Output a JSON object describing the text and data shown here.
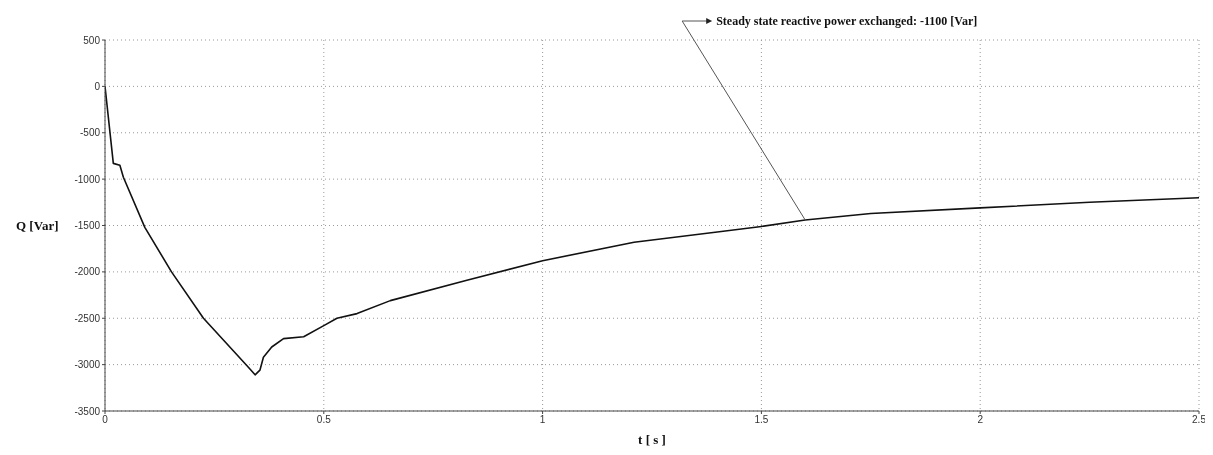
{
  "chart_data": {
    "type": "line",
    "xlabel": "t [ s ]",
    "ylabel": "Q [Var]",
    "annotations": [
      {
        "text": "Steady state reactive power exchanged: -1100  [Var]",
        "x": 1.6,
        "y": -1440
      }
    ],
    "xlim": [
      0,
      2.5
    ],
    "xticks": [
      0,
      0.5,
      1,
      1.5,
      2,
      2.5
    ],
    "ylim": [
      -3500,
      500
    ],
    "yticks": [
      -3500,
      -3000,
      -2500,
      -2000,
      -1500,
      -1000,
      -500,
      0,
      500
    ],
    "grid": true,
    "line_style": "solid",
    "marker": "none",
    "series": [
      {
        "color": "#111111",
        "x": [
          0,
          0.019,
          0.034,
          0.042,
          0.091,
          0.152,
          0.225,
          0.324,
          0.343,
          0.354,
          0.362,
          0.381,
          0.408,
          0.454,
          0.5,
          0.53,
          0.576,
          0.652,
          0.827,
          1.0,
          1.209,
          1.399,
          1.5,
          1.6,
          1.75,
          2.0,
          2.25,
          2.5
        ],
        "values": [
          0,
          -830,
          -850,
          -980,
          -1520,
          -2000,
          -2500,
          -3010,
          -3110,
          -3060,
          -2920,
          -2810,
          -2720,
          -2700,
          -2580,
          -2500,
          -2450,
          -2310,
          -2090,
          -1880,
          -1680,
          -1570,
          -1510,
          -1440,
          -1370,
          -1310,
          -1250,
          -1200
        ]
      }
    ]
  }
}
